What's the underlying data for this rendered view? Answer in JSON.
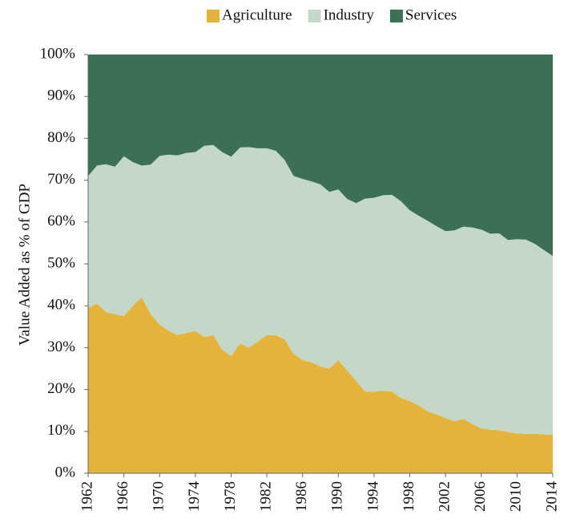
{
  "chart_data": {
    "type": "area",
    "stacked": true,
    "y_label": "Value Added as % of GDP",
    "x": [
      1962,
      1963,
      1964,
      1965,
      1966,
      1967,
      1968,
      1969,
      1970,
      1971,
      1972,
      1973,
      1974,
      1975,
      1976,
      1977,
      1978,
      1979,
      1980,
      1981,
      1982,
      1983,
      1984,
      1985,
      1986,
      1987,
      1988,
      1989,
      1990,
      1991,
      1992,
      1993,
      1994,
      1995,
      1996,
      1997,
      1998,
      1999,
      2000,
      2001,
      2002,
      2003,
      2004,
      2005,
      2006,
      2007,
      2008,
      2009,
      2010,
      2011,
      2012,
      2013,
      2014
    ],
    "series": [
      {
        "name": "Agriculture",
        "color": "#e3b33a",
        "values": [
          39.5,
          40.5,
          38.5,
          38,
          37.5,
          40,
          42,
          38,
          35.5,
          34,
          33,
          33.5,
          34,
          32.5,
          33,
          29.5,
          28,
          31,
          30,
          31.5,
          33,
          33,
          32,
          28.5,
          27,
          26.5,
          25.5,
          25,
          27,
          24.5,
          22,
          19.5,
          19.5,
          19.7,
          19.5,
          18,
          17.2,
          16.2,
          14.8,
          14,
          13.2,
          12.4,
          13,
          11.7,
          10.7,
          10.4,
          10.3,
          9.8,
          9.5,
          9.4,
          9.4,
          9.3,
          9.2
        ]
      },
      {
        "name": "Industry",
        "color": "#c3d8c9",
        "values": [
          31.5,
          33,
          35.3,
          35.2,
          38.2,
          34.3,
          31.5,
          35.7,
          40.3,
          42.1,
          42.9,
          43,
          42.7,
          45.7,
          45.4,
          47.2,
          47.6,
          46.8,
          47.9,
          46.1,
          44.6,
          44,
          42.8,
          42.5,
          43.3,
          43.2,
          43.5,
          42.2,
          40.8,
          41,
          42.5,
          46.1,
          46.3,
          46.7,
          47,
          47,
          45.6,
          45.3,
          45.5,
          45,
          44.6,
          45.6,
          45.9,
          47,
          47.5,
          46.8,
          47,
          45.9,
          46.4,
          46.4,
          45.4,
          44,
          42.7
        ]
      },
      {
        "name": "Services",
        "color": "#3b7055",
        "values": [
          29,
          26.5,
          26.2,
          26.8,
          24.3,
          25.7,
          26.5,
          26.3,
          24.2,
          23.9,
          24.1,
          23.5,
          23.3,
          21.8,
          21.6,
          23.3,
          24.4,
          22.2,
          22.1,
          22.4,
          22.4,
          23,
          25.2,
          29,
          29.7,
          30.3,
          31,
          32.8,
          32.2,
          34.5,
          35.5,
          34.4,
          34.2,
          33.6,
          33.5,
          35,
          37.2,
          38.5,
          39.7,
          41,
          42.2,
          42,
          41.1,
          41.3,
          41.8,
          42.8,
          42.7,
          44.3,
          44.1,
          44.2,
          45.2,
          46.7,
          48.1
        ]
      }
    ],
    "xlim": [
      1962,
      2014
    ],
    "xticks": [
      1962,
      1966,
      1970,
      1974,
      1978,
      1982,
      1986,
      1990,
      1994,
      1998,
      2002,
      2006,
      2010,
      2014
    ],
    "ylim": [
      0,
      100
    ],
    "yticks": [
      {
        "value": 0,
        "label": "0%"
      },
      {
        "value": 10,
        "label": "10%"
      },
      {
        "value": 20,
        "label": "20%"
      },
      {
        "value": 30,
        "label": "30%"
      },
      {
        "value": 40,
        "label": "40%"
      },
      {
        "value": 50,
        "label": "50%"
      },
      {
        "value": 60,
        "label": "60%"
      },
      {
        "value": 70,
        "label": "70%"
      },
      {
        "value": 80,
        "label": "80%"
      },
      {
        "value": 90,
        "label": "90%"
      },
      {
        "value": 100,
        "label": "100%"
      }
    ],
    "legend": "top"
  }
}
